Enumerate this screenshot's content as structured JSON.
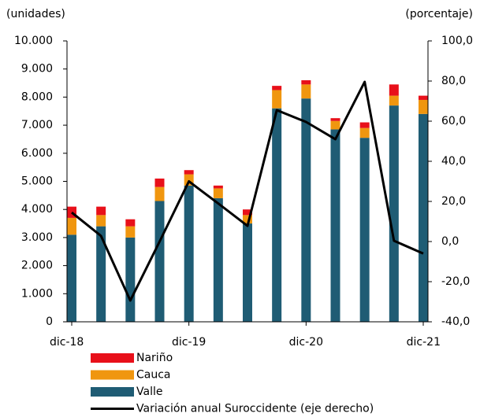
{
  "chart_data": {
    "type": "bar",
    "stacked": true,
    "y_label": "(unidades)",
    "y2_label": "(porcentaje)",
    "categories": [
      "dic-18",
      null,
      null,
      null,
      "dic-19",
      null,
      null,
      null,
      "dic-20",
      null,
      null,
      null,
      "dic-21"
    ],
    "series": [
      {
        "name": "Valle",
        "color": "#1f5c74",
        "values": [
          3.1,
          3.4,
          3.0,
          4.3,
          4.85,
          4.4,
          3.5,
          7.6,
          7.95,
          6.85,
          6.55,
          7.7,
          7.4
        ]
      },
      {
        "name": "Cauca",
        "color": "#f0960f",
        "values": [
          0.6,
          0.4,
          0.4,
          0.5,
          0.4,
          0.35,
          0.3,
          0.65,
          0.5,
          0.3,
          0.35,
          0.35,
          0.5
        ]
      },
      {
        "name": "Nariño",
        "color": "#e8101a",
        "values": [
          0.4,
          0.3,
          0.25,
          0.3,
          0.15,
          0.1,
          0.2,
          0.15,
          0.15,
          0.1,
          0.2,
          0.4,
          0.15
        ]
      },
      {
        "name": "Variación anual Suroccidente (eje derecho)",
        "type": "line",
        "axis": "y2",
        "color": "#000000",
        "values": [
          14.5,
          2.8,
          -29.4,
          0,
          30,
          19,
          7.8,
          65.5,
          59.6,
          51,
          79.6,
          0.4,
          -6
        ]
      }
    ],
    "ylim": [
      0,
      10
    ],
    "yticks": [
      {
        "value": 0,
        "label": "0"
      },
      {
        "value": 1,
        "label": "1.000"
      },
      {
        "value": 2,
        "label": "2.000"
      },
      {
        "value": 3,
        "label": "3.000"
      },
      {
        "value": 4,
        "label": "4.000"
      },
      {
        "value": 5,
        "label": "5.000"
      },
      {
        "value": 6,
        "label": "6.000"
      },
      {
        "value": 7,
        "label": "7.000"
      },
      {
        "value": 8,
        "label": "8.000"
      },
      {
        "value": 9,
        "label": "9.000"
      },
      {
        "value": 10,
        "label": "10.000"
      }
    ],
    "y2lim": [
      -40,
      100
    ],
    "y2ticks": [
      {
        "value": -40,
        "label": "-40,0"
      },
      {
        "value": -20,
        "label": "-20,0"
      },
      {
        "value": 0,
        "label": "0,0"
      },
      {
        "value": 20,
        "label": "20,0"
      },
      {
        "value": 40,
        "label": "40,0"
      },
      {
        "value": 60,
        "label": "60,0"
      },
      {
        "value": 80,
        "label": "80,0"
      },
      {
        "value": 100,
        "label": "100,0"
      }
    ],
    "legend": "bottom"
  }
}
